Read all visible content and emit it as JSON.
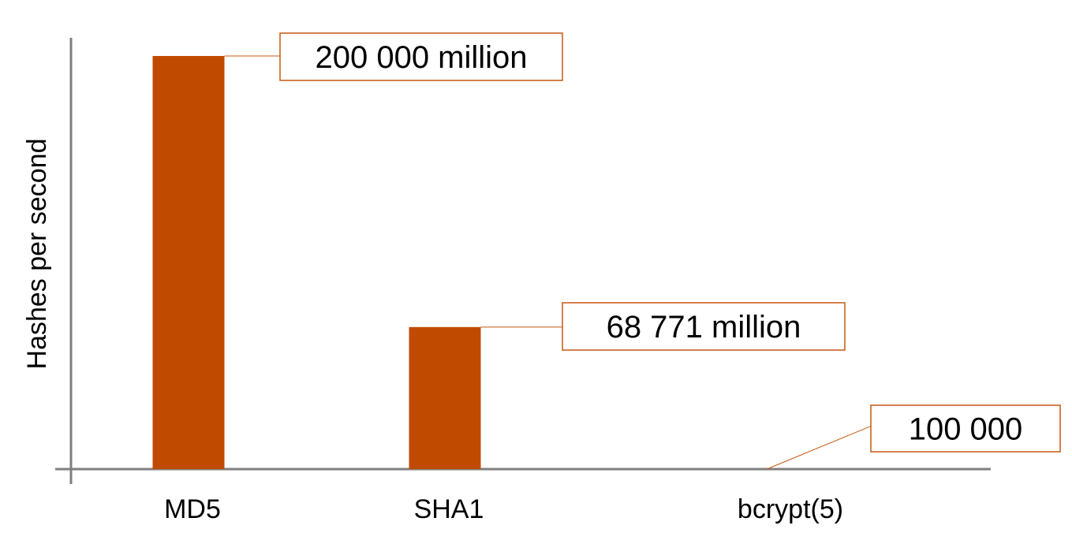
{
  "chart_data": {
    "type": "bar",
    "ylabel": "Hashes per second",
    "categories": [
      "MD5",
      "SHA1",
      "bcrypt(5)"
    ],
    "values": [
      200000000000,
      68771000000,
      100000
    ],
    "data_labels": [
      "200 000 million",
      "68 771 million",
      "100 000"
    ],
    "ylim": [
      0,
      200000000000
    ],
    "grid": false,
    "colors": {
      "bar": "#c04b00",
      "label_border": "#c65911",
      "axis": "#7f7f7f"
    }
  }
}
